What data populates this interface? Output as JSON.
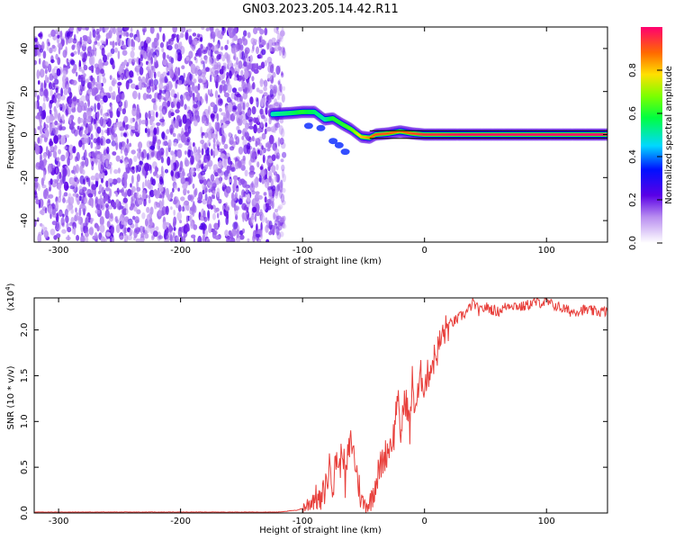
{
  "title": "GN03.2023.205.14.42.R11",
  "colors": {
    "snr_line": "#e8403c",
    "axes": "#000000"
  },
  "chart_data": [
    {
      "type": "heatmap",
      "title": "GN03.2023.205.14.42.R11",
      "xlabel": "Height of straight line (km)",
      "ylabel": "Frequency (Hz)",
      "xlim": [
        -320,
        150
      ],
      "ylim": [
        -50,
        50
      ],
      "xticks": [
        -300,
        -200,
        -100,
        0,
        100
      ],
      "yticks": [
        -40,
        -20,
        0,
        20,
        40
      ],
      "colorbar": {
        "label": "Normalized spectral amplitude",
        "range": [
          0.0,
          1.0
        ],
        "ticks": [
          0.0,
          0.2,
          0.4,
          0.6,
          0.8
        ],
        "tick_labels": [
          "0.0",
          "0.2",
          "0.4",
          "0.6",
          "0.8"
        ]
      },
      "features": {
        "noise_region_x": [
          -320,
          -115
        ],
        "signal_path": [
          {
            "x": -125,
            "f": 9.5,
            "a": 0.5
          },
          {
            "x": -110,
            "f": 10,
            "a": 0.55
          },
          {
            "x": -100,
            "f": 10.5,
            "a": 0.6
          },
          {
            "x": -90,
            "f": 10.5,
            "a": 0.55
          },
          {
            "x": -82,
            "f": 7,
            "a": 0.5
          },
          {
            "x": -75,
            "f": 7.5,
            "a": 0.6
          },
          {
            "x": -68,
            "f": 5,
            "a": 0.6
          },
          {
            "x": -60,
            "f": 2.5,
            "a": 0.65
          },
          {
            "x": -52,
            "f": -1,
            "a": 0.8
          },
          {
            "x": -45,
            "f": -1.5,
            "a": 0.85
          },
          {
            "x": -40,
            "f": 0,
            "a": 0.9
          },
          {
            "x": -30,
            "f": 0.5,
            "a": 0.9
          },
          {
            "x": -20,
            "f": 1.5,
            "a": 0.85
          },
          {
            "x": -10,
            "f": 0.5,
            "a": 0.9
          },
          {
            "x": 0,
            "f": 0,
            "a": 0.95
          },
          {
            "x": 10,
            "f": 0,
            "a": 0.95
          },
          {
            "x": 30,
            "f": 0,
            "a": 0.98
          },
          {
            "x": 150,
            "f": 0,
            "a": 1.0
          }
        ],
        "branch": [
          {
            "x": -95,
            "f": 4
          },
          {
            "x": -85,
            "f": 3
          },
          {
            "x": -75,
            "f": -3
          },
          {
            "x": -70,
            "f": -5
          },
          {
            "x": -65,
            "f": -8
          }
        ]
      }
    },
    {
      "type": "line",
      "xlabel": "Height of straight line (km)",
      "ylabel": "SNR (10 * v/v)",
      "y_multiplier": "(x10^4)",
      "y_multiplier_base": "(x10",
      "y_multiplier_exp": "4",
      "y_multiplier_close": ")",
      "xlim": [
        -320,
        150
      ],
      "ylim": [
        0,
        2.35
      ],
      "xticks": [
        -300,
        -200,
        -100,
        0,
        100
      ],
      "yticks": [
        0.0,
        0.5,
        1.0,
        1.5,
        2.0
      ],
      "ytick_labels": [
        "0.0",
        "0.5",
        "1.0",
        "1.5",
        "2.0"
      ],
      "series": [
        {
          "x": [
            -320,
            -300,
            -250,
            -200,
            -150,
            -120,
            -105,
            -100,
            -95,
            -90,
            -85,
            -80,
            -77,
            -75,
            -72,
            -70,
            -67,
            -65,
            -63,
            -60,
            -55,
            -52,
            -50,
            -45,
            -40,
            -35,
            -30,
            -25,
            -22,
            -20,
            -18,
            -15,
            -12,
            -10,
            -8,
            -5,
            -3,
            0,
            5,
            10,
            15,
            20,
            25,
            30,
            35,
            40,
            45,
            50,
            60,
            70,
            80,
            90,
            100,
            110,
            120,
            130,
            140,
            150
          ],
          "y": [
            0.01,
            0.01,
            0.01,
            0.01,
            0.01,
            0.01,
            0.03,
            0.05,
            0.1,
            0.18,
            0.12,
            0.35,
            0.55,
            0.28,
            0.65,
            0.45,
            0.75,
            0.3,
            0.6,
            0.8,
            0.4,
            0.15,
            0.1,
            0.1,
            0.35,
            0.55,
            0.7,
            0.85,
            1.35,
            0.75,
            1.1,
            1.25,
            0.9,
            1.45,
            1.15,
            1.3,
            1.5,
            1.4,
            1.6,
            1.75,
            1.95,
            2.05,
            2.1,
            2.15,
            2.2,
            2.3,
            2.2,
            2.25,
            2.2,
            2.28,
            2.25,
            2.3,
            2.3,
            2.25,
            2.2,
            2.22,
            2.2,
            2.2
          ]
        }
      ]
    }
  ]
}
